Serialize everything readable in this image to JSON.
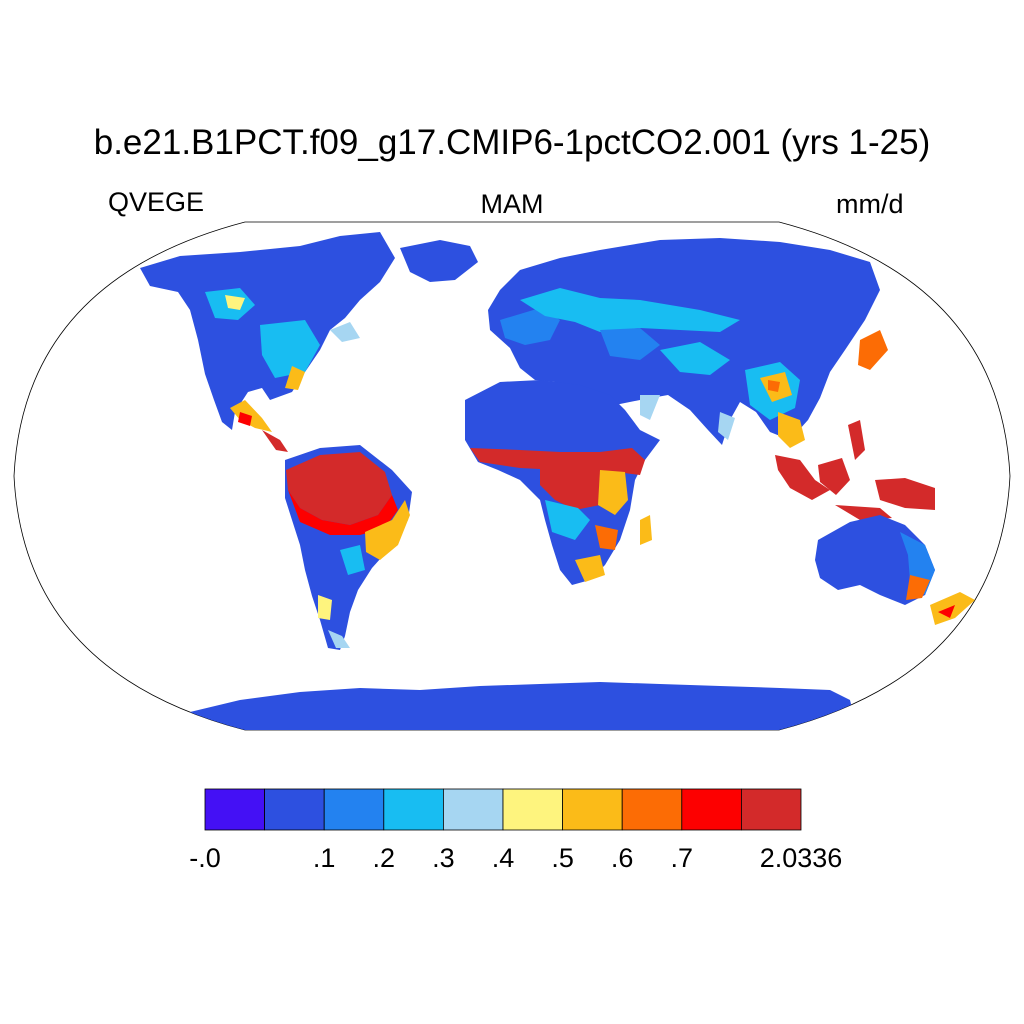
{
  "figure": {
    "title": "b.e21.B1PCT.f09_g17.CMIP6-1pctCO2.001 (yrs 1-25)",
    "variable": "QVEGE",
    "season": "MAM",
    "units": "mm/d"
  },
  "colorbar": {
    "colors": [
      "#4410f5",
      "#2d50e0",
      "#2382f0",
      "#18bdf2",
      "#a6d6f2",
      "#fef47e",
      "#fbbb18",
      "#fc6c05",
      "#fd0000",
      "#d32a2a"
    ],
    "tick_labels": [
      "-.0",
      ".1",
      ".2",
      ".3",
      ".4",
      ".5",
      ".6",
      ".7",
      "2.0336"
    ]
  },
  "map_colors": {
    "ocean": "#ffffff",
    "outline": "#000000"
  }
}
